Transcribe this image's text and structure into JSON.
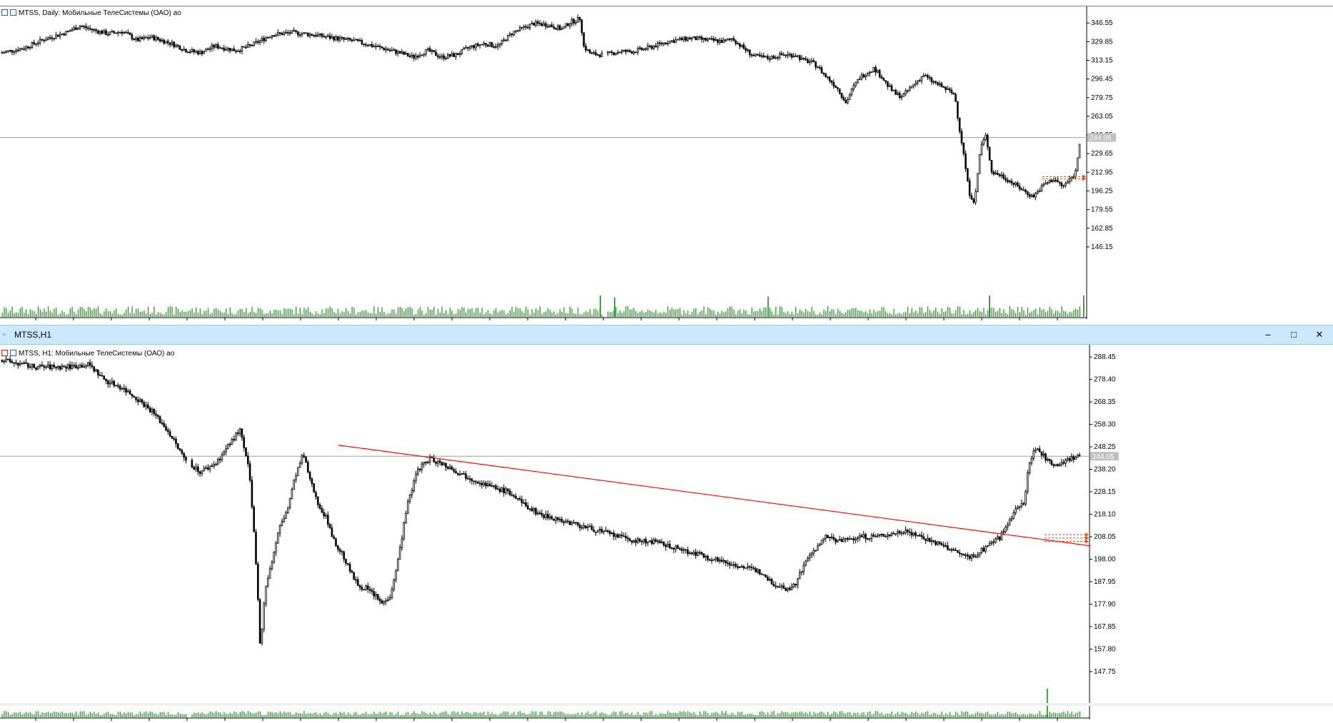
{
  "top_chart": {
    "label": "MTSS, Daily:  Мобильные ТелеСистемы (ОАО) ао",
    "current_price_label": "244.05"
  },
  "bottom_window": {
    "title": "MTSS,H1",
    "minimize_icon": "minimize-icon",
    "maximize_icon": "maximize-icon",
    "close_icon": "close-icon",
    "chart_label": "MTSS, H1:  Мобильные ТелеСистемы (ОАО) ао",
    "current_price_label": "244.05"
  },
  "colors": {
    "candle": "#000000",
    "volume": "#1a8c1a",
    "trendline": "#ff0000",
    "price_line": "#a0a0a0",
    "order_marker": "#e05020",
    "title_bar": "#cce8ff"
  },
  "chart_data": [
    {
      "type": "candlestick",
      "title": "MTSS, Daily:  Мобильные ТелеСистемы (ОАО) ао",
      "ylim": [
        137.8,
        355
      ],
      "y_ticks": [
        "346.55",
        "329.85",
        "313.15",
        "296.45",
        "279.75",
        "263.05",
        "246.35",
        "229.65",
        "212.95",
        "196.25",
        "179.55",
        "162.85",
        "146.15"
      ],
      "current_price": 244.05,
      "close_path": [
        [
          0,
          320
        ],
        [
          15,
          324
        ],
        [
          30,
          332
        ],
        [
          45,
          338
        ],
        [
          55,
          344
        ],
        [
          65,
          340
        ],
        [
          75,
          337
        ],
        [
          85,
          339
        ],
        [
          95,
          331
        ],
        [
          105,
          334
        ],
        [
          120,
          328
        ],
        [
          130,
          322
        ],
        [
          140,
          320
        ],
        [
          150,
          326
        ],
        [
          165,
          322
        ],
        [
          175,
          326
        ],
        [
          190,
          336
        ],
        [
          205,
          338
        ],
        [
          220,
          336
        ],
        [
          235,
          333
        ],
        [
          250,
          330
        ],
        [
          265,
          325
        ],
        [
          280,
          320
        ],
        [
          290,
          316
        ],
        [
          300,
          322
        ],
        [
          310,
          316
        ],
        [
          320,
          318
        ],
        [
          330,
          325
        ],
        [
          340,
          328
        ],
        [
          350,
          326
        ],
        [
          360,
          338
        ],
        [
          375,
          346
        ],
        [
          385,
          345
        ],
        [
          395,
          341
        ],
        [
          400,
          347
        ],
        [
          405,
          349
        ],
        [
          408,
          351
        ],
        [
          410,
          326
        ],
        [
          415,
          319
        ],
        [
          425,
          318
        ],
        [
          435,
          321
        ],
        [
          445,
          321
        ],
        [
          455,
          324
        ],
        [
          470,
          330
        ],
        [
          485,
          333
        ],
        [
          500,
          331
        ],
        [
          510,
          330
        ],
        [
          515,
          333
        ],
        [
          520,
          327
        ],
        [
          525,
          322
        ],
        [
          530,
          317
        ],
        [
          540,
          315
        ],
        [
          550,
          318
        ],
        [
          560,
          318
        ],
        [
          565,
          313
        ],
        [
          570,
          312
        ],
        [
          575,
          308
        ],
        [
          580,
          300
        ],
        [
          585,
          294
        ],
        [
          590,
          287
        ],
        [
          595,
          275
        ],
        [
          600,
          288
        ],
        [
          605,
          298
        ],
        [
          615,
          306
        ],
        [
          620,
          299
        ],
        [
          625,
          290
        ],
        [
          630,
          283
        ],
        [
          635,
          281
        ],
        [
          645,
          294
        ],
        [
          650,
          300
        ],
        [
          655,
          295
        ],
        [
          665,
          288
        ],
        [
          672,
          282
        ],
        [
          675,
          254
        ],
        [
          678,
          231
        ],
        [
          682,
          195
        ],
        [
          686,
          186
        ],
        [
          690,
          235
        ],
        [
          694,
          246
        ],
        [
          698,
          213
        ],
        [
          705,
          210
        ],
        [
          712,
          204
        ],
        [
          720,
          197
        ],
        [
          727,
          191
        ],
        [
          735,
          202
        ],
        [
          742,
          207
        ],
        [
          748,
          200
        ],
        [
          752,
          205
        ],
        [
          757,
          212
        ],
        [
          760,
          240
        ]
      ],
      "volume_scale": "relative",
      "volume_spikes": [
        [
          840,
          1.0
        ],
        [
          860,
          0.9
        ],
        [
          1075,
          0.95
        ],
        [
          1385,
          1.0
        ],
        [
          1517,
          1.0
        ]
      ]
    },
    {
      "type": "candlestick",
      "title": "MTSS, H1:  Мобильные ТелеСистемы (ОАО) ао",
      "ylim": [
        142,
        292
      ],
      "y_ticks": [
        "288.45",
        "278.40",
        "268.35",
        "258.30",
        "248.25",
        "238.20",
        "228.15",
        "218.10",
        "208.05",
        "198.00",
        "187.95",
        "177.90",
        "167.85",
        "157.80",
        "147.75"
      ],
      "current_price": 244.05,
      "trendline": {
        "from": [
          0,
          249
        ],
        "to": [
          1,
          204
        ]
      },
      "close_path": [
        [
          0,
          287
        ],
        [
          20,
          284
        ],
        [
          40,
          284
        ],
        [
          55,
          285
        ],
        [
          65,
          278
        ],
        [
          75,
          275
        ],
        [
          85,
          270
        ],
        [
          95,
          264
        ],
        [
          105,
          255
        ],
        [
          115,
          243
        ],
        [
          125,
          237
        ],
        [
          135,
          241
        ],
        [
          145,
          251
        ],
        [
          150,
          256
        ],
        [
          156,
          237
        ],
        [
          160,
          200
        ],
        [
          163,
          158
        ],
        [
          166,
          185
        ],
        [
          170,
          196
        ],
        [
          175,
          212
        ],
        [
          180,
          220
        ],
        [
          185,
          235
        ],
        [
          190,
          245
        ],
        [
          195,
          232
        ],
        [
          200,
          222
        ],
        [
          205,
          216
        ],
        [
          210,
          205
        ],
        [
          215,
          200
        ],
        [
          220,
          192
        ],
        [
          225,
          186
        ],
        [
          230,
          185
        ],
        [
          235,
          182
        ],
        [
          240,
          178
        ],
        [
          245,
          182
        ],
        [
          250,
          198
        ],
        [
          255,
          220
        ],
        [
          262,
          238
        ],
        [
          270,
          243
        ],
        [
          280,
          240
        ],
        [
          290,
          236
        ],
        [
          300,
          233
        ],
        [
          310,
          230
        ],
        [
          320,
          228
        ],
        [
          330,
          222
        ],
        [
          340,
          218
        ],
        [
          350,
          216
        ],
        [
          360,
          214
        ],
        [
          370,
          212
        ],
        [
          380,
          210
        ],
        [
          390,
          208
        ],
        [
          400,
          206
        ],
        [
          410,
          206
        ],
        [
          420,
          204
        ],
        [
          430,
          202
        ],
        [
          440,
          200
        ],
        [
          450,
          198
        ],
        [
          460,
          196
        ],
        [
          470,
          194
        ],
        [
          480,
          192
        ],
        [
          485,
          188
        ],
        [
          490,
          186
        ],
        [
          495,
          185
        ],
        [
          500,
          186
        ],
        [
          505,
          194
        ],
        [
          510,
          200
        ],
        [
          515,
          204
        ],
        [
          520,
          208
        ],
        [
          525,
          207
        ],
        [
          530,
          206
        ],
        [
          540,
          208
        ],
        [
          550,
          208
        ],
        [
          560,
          209
        ],
        [
          570,
          211
        ],
        [
          580,
          208
        ],
        [
          590,
          205
        ],
        [
          600,
          202
        ],
        [
          605,
          200
        ],
        [
          610,
          199
        ],
        [
          615,
          200
        ],
        [
          620,
          203
        ],
        [
          625,
          206
        ],
        [
          630,
          208
        ],
        [
          635,
          215
        ],
        [
          640,
          220
        ],
        [
          645,
          224
        ],
        [
          648,
          240
        ],
        [
          652,
          248
        ],
        [
          656,
          245
        ],
        [
          660,
          242
        ],
        [
          665,
          240
        ],
        [
          670,
          242
        ],
        [
          675,
          243
        ],
        [
          680,
          244
        ]
      ],
      "volume_spikes": [
        [
          1466,
          1.0
        ]
      ]
    }
  ]
}
